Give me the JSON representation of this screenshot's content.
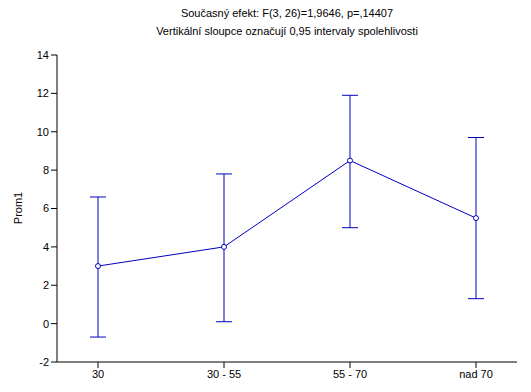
{
  "chart_data": {
    "type": "line",
    "title": "Současný efekt: F(3, 26)=1,9646, p=,14407",
    "subtitle": "Vertikální sloupce označují 0,95 intervaly spolehlivosti",
    "ylabel": "Prom1",
    "categories": [
      "30",
      "30 - 55",
      "55 - 70",
      "nad 70"
    ],
    "values": [
      3,
      4,
      8.5,
      5.5
    ],
    "ci_low": [
      -0.7,
      0.1,
      5.0,
      1.3
    ],
    "ci_high": [
      6.6,
      7.8,
      11.9,
      9.7
    ],
    "color": "#0000c0",
    "marker": "circle",
    "ylim": [
      -2,
      14
    ],
    "yticks": [
      -2,
      0,
      2,
      4,
      6,
      8,
      10,
      12,
      14
    ],
    "grid": false
  }
}
